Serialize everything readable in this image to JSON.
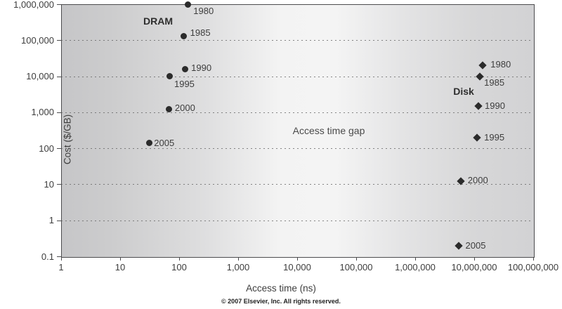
{
  "figure": {
    "copyright": "© 2007 Elsevier, Inc. All rights reserved."
  },
  "chart_data": {
    "type": "scatter",
    "title": "",
    "xlabel": "Access time (ns)",
    "ylabel": "Cost ($/GB)",
    "x_scale": "log",
    "y_scale": "log",
    "xlim": [
      1,
      100000000
    ],
    "ylim": [
      0.1,
      1000000
    ],
    "grid": "horizontal-dotted",
    "legend_position": "none",
    "x_ticks": [
      {
        "value": 1,
        "label": "1"
      },
      {
        "value": 10,
        "label": "10"
      },
      {
        "value": 100,
        "label": "100"
      },
      {
        "value": 1000,
        "label": "1,000"
      },
      {
        "value": 10000,
        "label": "10,000"
      },
      {
        "value": 100000,
        "label": "100,000"
      },
      {
        "value": 1000000,
        "label": "1,000,000"
      },
      {
        "value": 10000000,
        "label": "10,000,000"
      },
      {
        "value": 100000000,
        "label": "100,000,000"
      }
    ],
    "y_ticks": [
      {
        "value": 0.1,
        "label": "0.1"
      },
      {
        "value": 1,
        "label": "1"
      },
      {
        "value": 10,
        "label": "10"
      },
      {
        "value": 100,
        "label": "100"
      },
      {
        "value": 1000,
        "label": "1,000"
      },
      {
        "value": 10000,
        "label": "10,000"
      },
      {
        "value": 100000,
        "label": "100,000"
      },
      {
        "value": 1000000,
        "label": "1,000,000"
      }
    ],
    "series": [
      {
        "name": "DRAM",
        "marker": "circle",
        "color": "#2b2b2b",
        "points": [
          {
            "year": "1980",
            "access_ns": 140,
            "cost_per_gb": 1000000,
            "label_dx": 8,
            "label_dy": 10
          },
          {
            "year": "1985",
            "access_ns": 120,
            "cost_per_gb": 130000,
            "label_dx": 9,
            "label_dy": -4
          },
          {
            "year": "1990",
            "access_ns": 125,
            "cost_per_gb": 16000,
            "label_dx": 9,
            "label_dy": -1
          },
          {
            "year": "1995",
            "access_ns": 70,
            "cost_per_gb": 10000,
            "label_dx": 6,
            "label_dy": 11
          },
          {
            "year": "2000",
            "access_ns": 68,
            "cost_per_gb": 1200,
            "label_dx": 8,
            "label_dy": -2
          },
          {
            "year": "2005",
            "access_ns": 31,
            "cost_per_gb": 140,
            "label_dx": 7,
            "label_dy": 0
          }
        ]
      },
      {
        "name": "Disk",
        "marker": "diamond",
        "color": "#2b2b2b",
        "points": [
          {
            "year": "1980",
            "access_ns": 14000000,
            "cost_per_gb": 20000,
            "label_dx": 11,
            "label_dy": -1
          },
          {
            "year": "1985",
            "access_ns": 12500000,
            "cost_per_gb": 10000,
            "label_dx": 6,
            "label_dy": 9
          },
          {
            "year": "1990",
            "access_ns": 11800000,
            "cost_per_gb": 1500,
            "label_dx": 9,
            "label_dy": 0
          },
          {
            "year": "1995",
            "access_ns": 11200000,
            "cost_per_gb": 200,
            "label_dx": 10,
            "label_dy": 0
          },
          {
            "year": "2000",
            "access_ns": 5900000,
            "cost_per_gb": 12,
            "label_dx": 10,
            "label_dy": -1
          },
          {
            "year": "2005",
            "access_ns": 5400000,
            "cost_per_gb": 0.2,
            "label_dx": 10,
            "label_dy": 0
          }
        ]
      }
    ],
    "annotations": [
      {
        "text": "DRAM",
        "bold": true,
        "fx": 0.2054,
        "fy": 0.0668
      },
      {
        "text": "Disk",
        "bold": true,
        "fx": 0.8527,
        "fy": 0.3454
      },
      {
        "text": "Access time gap",
        "bold": false,
        "fx": 0.567,
        "fy": 0.5014
      }
    ],
    "colors": {
      "marker": "#2b2b2b",
      "tick_text": "#3d3d3d",
      "grid_dot": "#5f5f5f",
      "plot_border": "#4c4c4e",
      "bg_edge": "#c6c6c8",
      "bg_center": "#f4f4f4"
    }
  }
}
